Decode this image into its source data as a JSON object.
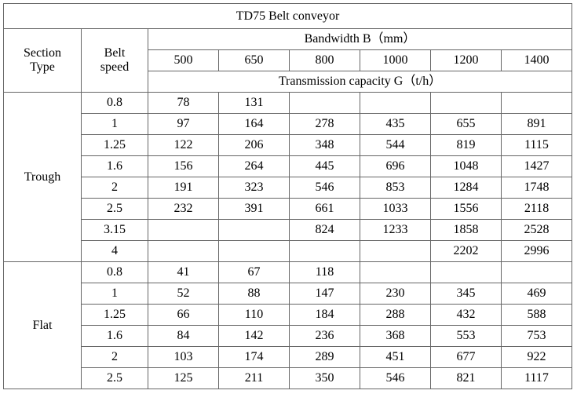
{
  "table": {
    "title": "TD75 Belt conveyor",
    "header": {
      "section_type": "Section Type",
      "belt_speed": "Belt speed",
      "bandwidth": "Bandwidth B（mm）",
      "widths": [
        500,
        650,
        800,
        1000,
        1200,
        1400
      ],
      "capacity": "Transmission capacity G（t/h）"
    },
    "groups": [
      {
        "name": "Trough",
        "rows": [
          [
            0.8,
            78,
            131,
            null,
            null,
            null,
            null
          ],
          [
            1,
            97,
            164,
            278,
            435,
            655,
            891
          ],
          [
            1.25,
            122,
            206,
            348,
            544,
            819,
            1115
          ],
          [
            1.6,
            156,
            264,
            445,
            696,
            1048,
            1427
          ],
          [
            2,
            191,
            323,
            546,
            853,
            1284,
            1748
          ],
          [
            2.5,
            232,
            391,
            661,
            1033,
            1556,
            2118
          ],
          [
            3.15,
            null,
            null,
            824,
            1233,
            1858,
            2528
          ],
          [
            4,
            null,
            null,
            null,
            null,
            2202,
            2996
          ]
        ]
      },
      {
        "name": "Flat",
        "rows": [
          [
            0.8,
            41,
            67,
            118,
            null,
            null,
            null
          ],
          [
            1,
            52,
            88,
            147,
            230,
            345,
            469
          ],
          [
            1.25,
            66,
            110,
            184,
            288,
            432,
            588
          ],
          [
            1.6,
            84,
            142,
            236,
            368,
            553,
            753
          ],
          [
            2,
            103,
            174,
            289,
            451,
            677,
            922
          ],
          [
            2.5,
            125,
            211,
            350,
            546,
            821,
            1117
          ]
        ]
      }
    ]
  }
}
